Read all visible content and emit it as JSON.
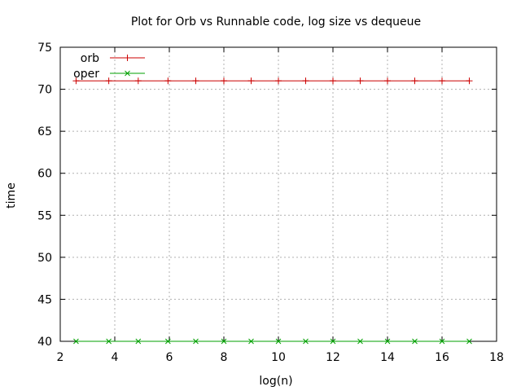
{
  "chart_data": {
    "type": "line",
    "title": "Plot for Orb vs Runnable code, log size vs dequeue",
    "xlabel": "log(n)",
    "ylabel": "time",
    "xlim": [
      2,
      18
    ],
    "ylim": [
      40,
      75
    ],
    "xticks": [
      2,
      4,
      6,
      8,
      10,
      12,
      14,
      16,
      18
    ],
    "yticks": [
      40,
      45,
      50,
      55,
      60,
      65,
      70,
      75
    ],
    "grid": true,
    "legend_position": "top-left",
    "series": [
      {
        "name": "orb",
        "color": "#cc0000",
        "marker": "plus",
        "x": [
          2.58,
          3.78,
          4.86,
          5.95,
          6.97,
          8,
          9,
          10,
          11,
          12,
          13,
          14,
          15,
          16,
          17
        ],
        "y": [
          71,
          71,
          71,
          71,
          71,
          71,
          71,
          71,
          71,
          71,
          71,
          71,
          71,
          71,
          71
        ]
      },
      {
        "name": "oper",
        "color": "#00a000",
        "marker": "cross",
        "x": [
          2.58,
          3.78,
          4.86,
          5.95,
          6.97,
          8,
          9,
          10,
          11,
          12,
          13,
          14,
          15,
          16,
          17
        ],
        "y": [
          40,
          40,
          40,
          40,
          40,
          40,
          40,
          40,
          40,
          40,
          40,
          40,
          40,
          40,
          40
        ]
      }
    ]
  }
}
